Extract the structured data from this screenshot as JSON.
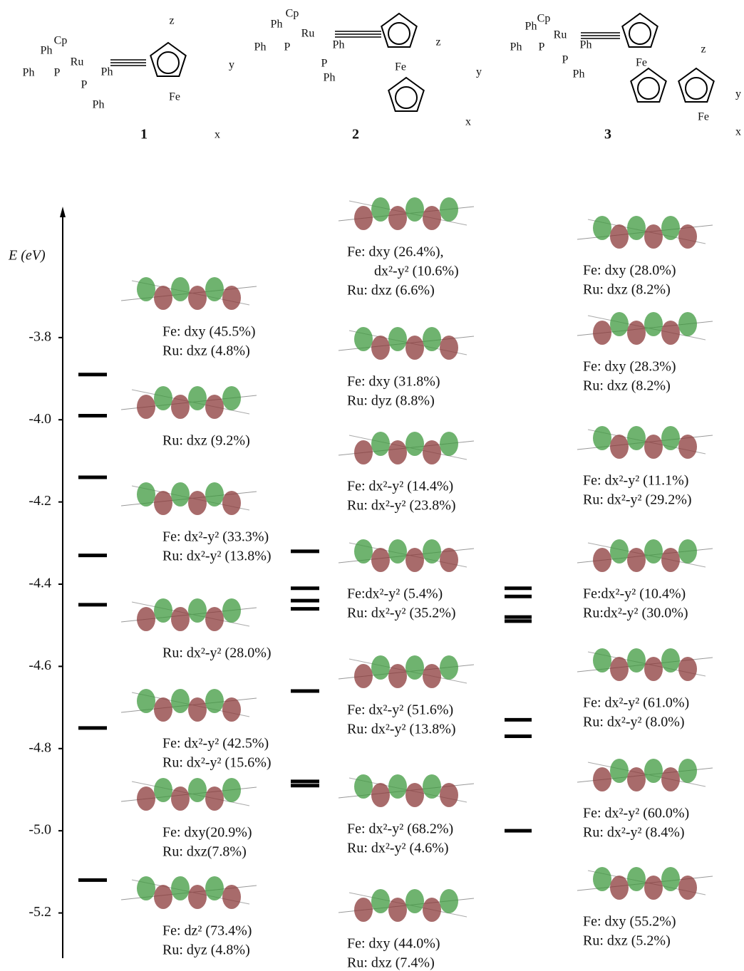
{
  "chart_data": {
    "type": "levels",
    "ylabel": "E (eV)",
    "ylim": [
      -5.31,
      -3.49
    ],
    "yticks": [
      -3.8,
      {
        "value": -4,
        "label": "-4.0"
      },
      -4.2,
      -4.4,
      -4.6,
      -4.8,
      {
        "value": -5,
        "label": "-5.0"
      },
      -5.2
    ],
    "color": "#000000",
    "series": [
      {
        "values": [
          -3.89,
          -3.99,
          -4.14,
          -4.33,
          -4.45,
          -4.75,
          -5.12
        ]
      },
      {
        "values": [
          -4.32,
          -4.41,
          -4.44,
          -4.46,
          -4.66,
          -4.88,
          -4.89
        ]
      },
      {
        "values": [
          -4.41,
          -4.43,
          -4.48,
          -4.49,
          -4.73,
          -4.77,
          -5.0
        ]
      }
    ],
    "captions": [
      [
        [
          "Fe: dxy (45.5%)",
          "Ru: dxz (4.8%)"
        ],
        [
          "Ru: dxz (9.2%)"
        ],
        [
          "Fe: dx²-y² (33.3%)",
          "Ru: dx²-y² (13.8%)"
        ],
        [
          "Ru: dx²-y² (28.0%)"
        ],
        [
          "Fe: dx²-y² (42.5%)",
          "Ru: dx²-y² (15.6%)"
        ],
        [
          "Fe: dxy(20.9%)",
          "Ru: dxz(7.8%)"
        ],
        [
          "Fe: dz² (73.4%)",
          "Ru: dyz (4.8%)"
        ]
      ],
      [
        [
          "Fe: dxy (26.4%),",
          "dx²-y² (10.6%)",
          "Ru: dxz (6.6%)"
        ],
        [
          "Fe: dxy (31.8%)",
          "Ru: dyz (8.8%)"
        ],
        [
          "Fe: dx²-y² (14.4%)",
          "Ru: dx²-y² (23.8%)"
        ],
        [
          "Fe:dx²-y² (5.4%)",
          "Ru: dx²-y² (35.2%)"
        ],
        [
          "Fe: dx²-y² (51.6%)",
          "Ru: dx²-y² (13.8%)"
        ],
        [
          "Fe: dx²-y² (68.2%)",
          "Ru: dx²-y² (4.6%)"
        ],
        [
          "Fe: dxy (44.0%)",
          "Ru: dxz (7.4%)"
        ]
      ],
      [
        [
          "Fe: dxy (28.0%)",
          "Ru: dxz (8.2%)"
        ],
        [
          "Fe: dxy (28.3%)",
          "Ru: dxz (8.2%)"
        ],
        [
          "Fe: dx²-y² (11.1%)",
          "Ru: dx²-y² (29.2%)"
        ],
        [
          "Fe:dx²-y² (10.4%)",
          "Ru:dx²-y² (30.0%)"
        ],
        [
          "Fe: dx²-y² (61.0%)",
          "Ru: dx²-y² (8.0%)"
        ],
        [
          "Fe: dx²-y² (60.0%)",
          "Ru: dx²-y² (8.4%)"
        ],
        [
          "Fe: dxy (55.2%)",
          "Ru: dxz (5.2%)"
        ]
      ]
    ],
    "structures": [
      {
        "number": "1",
        "labels": [
          "Cp",
          "Ph",
          "Ru",
          "Ph",
          "P",
          "Ph",
          "P",
          "Ph",
          "Fe",
          "z",
          "y",
          "x"
        ]
      },
      {
        "number": "2",
        "labels": [
          "Cp",
          "Ph",
          "Ru",
          "Ph",
          "P",
          "Ph",
          "P",
          "Ph",
          "Fe",
          "z",
          "y",
          "x"
        ]
      },
      {
        "number": "3",
        "labels": [
          "Cp",
          "Ph",
          "Ru",
          "Ph",
          "P",
          "Ph",
          "P",
          "Ph",
          "Fe",
          "z",
          "y",
          "x",
          "Fe"
        ]
      }
    ]
  }
}
